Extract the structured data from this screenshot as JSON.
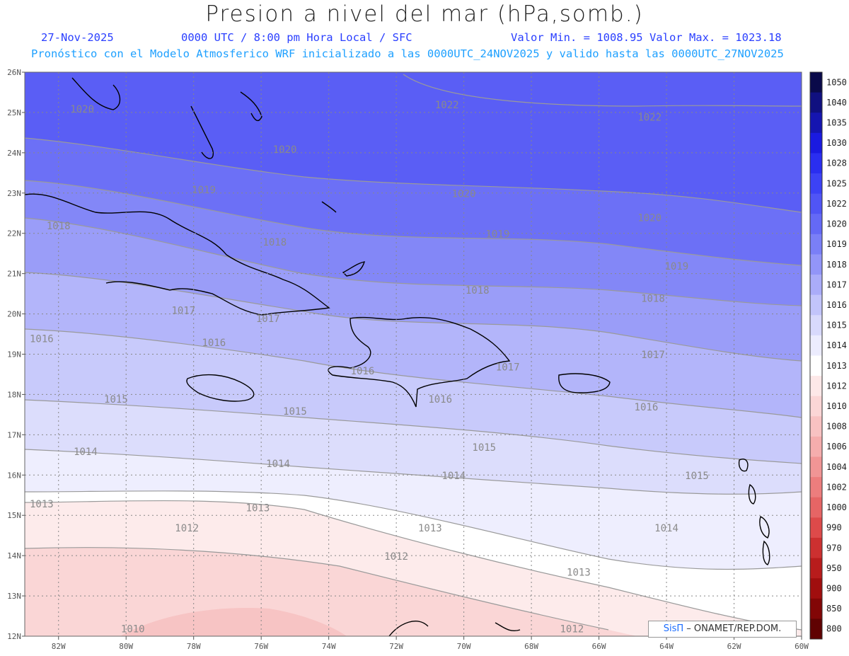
{
  "title": "Presion a nivel del mar (hPa,somb.)",
  "subtitle": {
    "date": "27-Nov-2025",
    "time": "0000 UTC / 8:00 pm Hora Local / SFC",
    "minmax": "Valor Min. = 1008.95  Valor Max. = 1023.18",
    "model": "Pronóstico con el Modelo Atmosferico WRF inicializado a las 0000UTC_24NOV2025 y valido hasta las  0000UTC_27NOV2025"
  },
  "credit": {
    "sis": "SisΠ",
    "rest": " – ONAMET/REP.DOM."
  },
  "colors": {
    "high": "#4f55f5",
    "mid": "#c8cbfa",
    "white": "#ffffff",
    "low": "#f7c9c9",
    "contour": "#999999",
    "coast": "#000000"
  },
  "chart_data": {
    "type": "heatmap",
    "variable": "Presion a nivel del mar",
    "units": "hPa",
    "valid": "0000UTC_27NOV2025",
    "value_min": 1008.95,
    "value_max": 1023.18,
    "lon_range": [
      -83,
      -60
    ],
    "lat_range": [
      12,
      26
    ],
    "lat_ticks": [
      "26N",
      "25N",
      "24N",
      "23N",
      "22N",
      "21N",
      "20N",
      "19N",
      "18N",
      "17N",
      "16N",
      "15N",
      "14N",
      "13N",
      "12N"
    ],
    "lon_ticks": [
      "82W",
      "80W",
      "78W",
      "76W",
      "74W",
      "72W",
      "70W",
      "68W",
      "66W",
      "64W",
      "62W",
      "60W"
    ],
    "colorbar_labels": [
      "1050",
      "1040",
      "1035",
      "1030",
      "1028",
      "1025",
      "1022",
      "1020",
      "1019",
      "1018",
      "1017",
      "1016",
      "1015",
      "1014",
      "1013",
      "1012",
      "1010",
      "1008",
      "1006",
      "1004",
      "1002",
      "1000",
      "990",
      "970",
      "950",
      "900",
      "850",
      "800"
    ],
    "colorbar_colors": [
      "#0a0a4a",
      "#101080",
      "#1515b0",
      "#1a1ae0",
      "#2a2ef0",
      "#3c42f5",
      "#5055f5",
      "#6469f6",
      "#7a7ff7",
      "#9295f8",
      "#aaacf9",
      "#c2c4fb",
      "#d8d9fc",
      "#ececfe",
      "#ffffff",
      "#fde8e8",
      "#fbd6d6",
      "#f8c2c2",
      "#f5adad",
      "#f19595",
      "#ed7d7d",
      "#e66565",
      "#dd4a4a",
      "#cc3030",
      "#b81c1c",
      "#a00e0e",
      "#820606",
      "#600202"
    ],
    "contour_labels": [
      {
        "text": "1022",
        "lon": -70.5,
        "lat": 25.1
      },
      {
        "text": "1022",
        "lon": -64.5,
        "lat": 24.8
      },
      {
        "text": "1020",
        "lon": -81.3,
        "lat": 25.0
      },
      {
        "text": "1020",
        "lon": -75.3,
        "lat": 24.0
      },
      {
        "text": "1020",
        "lon": -70.0,
        "lat": 22.9
      },
      {
        "text": "1020",
        "lon": -64.5,
        "lat": 22.3
      },
      {
        "text": "1019",
        "lon": -77.7,
        "lat": 23.0
      },
      {
        "text": "1019",
        "lon": -69.0,
        "lat": 21.9
      },
      {
        "text": "1019",
        "lon": -63.7,
        "lat": 21.1
      },
      {
        "text": "1018",
        "lon": -82.0,
        "lat": 22.1
      },
      {
        "text": "1018",
        "lon": -75.6,
        "lat": 21.7
      },
      {
        "text": "1018",
        "lon": -69.6,
        "lat": 20.5
      },
      {
        "text": "1018",
        "lon": -64.4,
        "lat": 20.3
      },
      {
        "text": "1017",
        "lon": -78.3,
        "lat": 20.0
      },
      {
        "text": "1017",
        "lon": -75.8,
        "lat": 19.8
      },
      {
        "text": "1017",
        "lon": -68.7,
        "lat": 18.6
      },
      {
        "text": "1017",
        "lon": -64.4,
        "lat": 18.9
      },
      {
        "text": "1016",
        "lon": -82.5,
        "lat": 19.3
      },
      {
        "text": "1016",
        "lon": -77.4,
        "lat": 19.2
      },
      {
        "text": "1016",
        "lon": -73.0,
        "lat": 18.5
      },
      {
        "text": "1016",
        "lon": -70.7,
        "lat": 17.8
      },
      {
        "text": "1016",
        "lon": -64.6,
        "lat": 17.6
      },
      {
        "text": "1015",
        "lon": -80.3,
        "lat": 17.8
      },
      {
        "text": "1015",
        "lon": -75.0,
        "lat": 17.5
      },
      {
        "text": "1015",
        "lon": -69.4,
        "lat": 16.6
      },
      {
        "text": "1015",
        "lon": -63.1,
        "lat": 15.9
      },
      {
        "text": "1014",
        "lon": -81.2,
        "lat": 16.5
      },
      {
        "text": "1014",
        "lon": -75.5,
        "lat": 16.2
      },
      {
        "text": "1014",
        "lon": -70.3,
        "lat": 15.9
      },
      {
        "text": "1014",
        "lon": -64.0,
        "lat": 14.6
      },
      {
        "text": "1013",
        "lon": -82.5,
        "lat": 15.2
      },
      {
        "text": "1013",
        "lon": -76.1,
        "lat": 15.1
      },
      {
        "text": "1013",
        "lon": -71.0,
        "lat": 14.6
      },
      {
        "text": "1013",
        "lon": -66.6,
        "lat": 13.5
      },
      {
        "text": "1012",
        "lon": -78.2,
        "lat": 14.6
      },
      {
        "text": "1012",
        "lon": -72.0,
        "lat": 13.9
      },
      {
        "text": "1012",
        "lon": -66.8,
        "lat": 12.1
      },
      {
        "text": "1010",
        "lon": -79.8,
        "lat": 12.1
      }
    ]
  }
}
